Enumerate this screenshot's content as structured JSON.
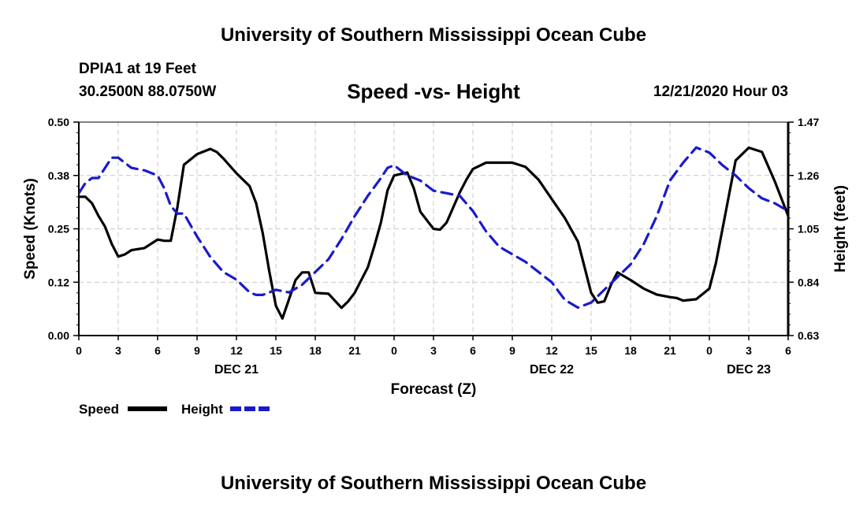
{
  "header": {
    "title": "University of Southern Mississippi Ocean Cube",
    "footer_title": "University of Southern Mississippi Ocean Cube",
    "station": "DPIA1 at 19 Feet",
    "coordinates": "30.2500N 88.0750W",
    "chart_title": "Speed -vs- Height",
    "date_hour": "12/21/2020 Hour 03"
  },
  "colors": {
    "speed": "#000000",
    "height": "#1a1acc",
    "grid": "#c8c8c8"
  },
  "chart_data": {
    "type": "line",
    "title": "Speed -vs- Height",
    "xlabel": "Forecast (Z)",
    "ylabel": "Speed (Knots)",
    "y2label": "Height (feet)",
    "xlim": [
      0,
      54
    ],
    "ylim": [
      0,
      0.5
    ],
    "y2lim": [
      0.63,
      1.47
    ],
    "grid": true,
    "x_ticks": [
      0,
      3,
      6,
      9,
      12,
      15,
      18,
      21,
      24,
      27,
      30,
      33,
      36,
      39,
      42,
      45,
      48,
      51,
      54
    ],
    "x_tick_labels": [
      "0",
      "3",
      "6",
      "9",
      "12",
      "15",
      "18",
      "21",
      "0",
      "3",
      "6",
      "9",
      "12",
      "15",
      "18",
      "21",
      "0",
      "3",
      "6"
    ],
    "y_ticks": [
      0,
      0.125,
      0.25,
      0.375,
      0.5
    ],
    "y_tick_labels": [
      "0.00",
      "0.12",
      "0.25",
      "0.38",
      "0.50"
    ],
    "y2_ticks": [
      0.63,
      0.84,
      1.05,
      1.26,
      1.47
    ],
    "y2_tick_labels": [
      "0.63",
      "0.84",
      "1.05",
      "1.26",
      "1.47"
    ],
    "day_labels": [
      {
        "x": 12,
        "label": "DEC 21"
      },
      {
        "x": 36,
        "label": "DEC 22"
      },
      {
        "x": 51,
        "label": "DEC 23"
      }
    ],
    "legend": [
      {
        "name": "Speed",
        "style": "solid"
      },
      {
        "name": "Height",
        "style": "dashed"
      }
    ],
    "series": [
      {
        "name": "Speed",
        "axis": "left",
        "x": [
          0,
          0.5,
          1,
          1.5,
          2,
          2.5,
          3,
          3.5,
          4,
          5,
          6,
          6.5,
          7,
          7.5,
          8,
          9,
          10,
          10.5,
          11,
          12,
          13,
          13.5,
          14,
          14.5,
          15,
          15.5,
          16,
          16.5,
          17,
          17.5,
          18,
          19,
          20,
          20.5,
          21,
          22,
          22.5,
          23,
          23.5,
          24,
          25,
          25.5,
          26,
          27,
          27.5,
          28,
          28.5,
          29,
          29.5,
          30,
          31,
          32,
          32.5,
          33,
          34,
          35,
          36,
          37,
          38,
          38.5,
          39,
          39.5,
          40,
          40.5,
          41,
          42,
          43,
          44,
          45,
          45.5,
          46,
          47,
          48,
          48.5,
          49,
          49.5,
          50,
          51,
          52,
          53,
          54
        ],
        "values": [
          0.325,
          0.325,
          0.31,
          0.28,
          0.255,
          0.215,
          0.185,
          0.19,
          0.2,
          0.205,
          0.225,
          0.222,
          0.222,
          0.3,
          0.4,
          0.425,
          0.437,
          0.43,
          0.415,
          0.38,
          0.35,
          0.31,
          0.24,
          0.15,
          0.07,
          0.04,
          0.085,
          0.13,
          0.148,
          0.148,
          0.1,
          0.098,
          0.065,
          0.08,
          0.1,
          0.16,
          0.21,
          0.265,
          0.34,
          0.375,
          0.382,
          0.345,
          0.29,
          0.25,
          0.248,
          0.265,
          0.3,
          0.335,
          0.365,
          0.39,
          0.405,
          0.405,
          0.405,
          0.405,
          0.395,
          0.365,
          0.32,
          0.275,
          0.22,
          0.16,
          0.1,
          0.077,
          0.08,
          0.118,
          0.148,
          0.13,
          0.11,
          0.096,
          0.09,
          0.088,
          0.082,
          0.085,
          0.11,
          0.17,
          0.25,
          0.33,
          0.41,
          0.44,
          0.43,
          0.36,
          0.28
        ]
      },
      {
        "name": "Height",
        "axis": "right",
        "x": [
          0,
          0.5,
          1,
          1.5,
          2,
          2.5,
          3,
          3.5,
          4,
          5,
          6,
          6.5,
          7,
          7.5,
          8,
          9,
          10,
          10.5,
          11,
          12,
          13,
          13.5,
          14,
          14.5,
          15,
          16,
          17,
          18,
          19,
          20,
          21,
          22,
          23,
          23.5,
          24,
          25,
          26,
          27,
          28,
          29,
          30,
          31,
          32,
          33,
          34,
          35,
          36,
          37,
          38,
          39,
          40,
          41,
          42,
          43,
          44,
          45,
          46,
          47,
          48,
          49,
          50,
          51,
          52,
          53,
          54
        ],
        "values": [
          1.19,
          1.23,
          1.25,
          1.25,
          1.29,
          1.33,
          1.33,
          1.31,
          1.29,
          1.28,
          1.26,
          1.21,
          1.14,
          1.11,
          1.11,
          1.02,
          0.94,
          0.91,
          0.88,
          0.85,
          0.8,
          0.79,
          0.79,
          0.8,
          0.81,
          0.8,
          0.83,
          0.88,
          0.93,
          1.01,
          1.1,
          1.18,
          1.25,
          1.29,
          1.3,
          1.26,
          1.24,
          1.2,
          1.19,
          1.18,
          1.12,
          1.04,
          0.98,
          0.95,
          0.92,
          0.88,
          0.84,
          0.77,
          0.74,
          0.76,
          0.81,
          0.86,
          0.91,
          0.99,
          1.1,
          1.24,
          1.31,
          1.37,
          1.35,
          1.3,
          1.26,
          1.21,
          1.17,
          1.15,
          1.12
        ]
      }
    ]
  }
}
